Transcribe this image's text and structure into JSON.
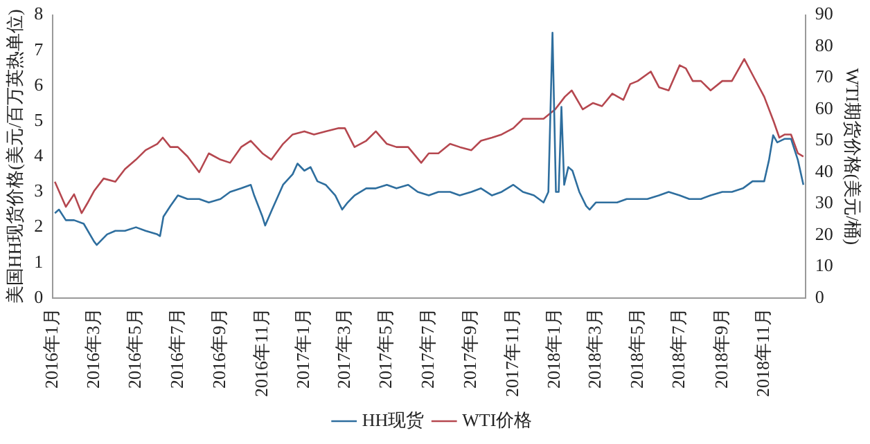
{
  "chart_data": {
    "type": "line",
    "ylabel": "美国HH现货价格(美元/百万英热单位)",
    "y2label": "WTI期货价格(美元/桶)",
    "xlim": [
      "2016-01-01",
      "2018-12-31"
    ],
    "xticks": [
      {
        "value": "2016-01",
        "label": "2016年1月"
      },
      {
        "value": "2016-03",
        "label": "2016年3月"
      },
      {
        "value": "2016-05",
        "label": "2016年5月"
      },
      {
        "value": "2016-07",
        "label": "2016年7月"
      },
      {
        "value": "2016-09",
        "label": "2016年9月"
      },
      {
        "value": "2016-11",
        "label": "2016年11月"
      },
      {
        "value": "2017-01",
        "label": "2017年1月"
      },
      {
        "value": "2017-03",
        "label": "2017年3月"
      },
      {
        "value": "2017-05",
        "label": "2017年5月"
      },
      {
        "value": "2017-07",
        "label": "2017年7月"
      },
      {
        "value": "2017-09",
        "label": "2017年9月"
      },
      {
        "value": "2017-11",
        "label": "2017年11月"
      },
      {
        "value": "2018-01",
        "label": "2018年1月"
      },
      {
        "value": "2018-03",
        "label": "2018年3月"
      },
      {
        "value": "2018-05",
        "label": "2018年5月"
      },
      {
        "value": "2018-07",
        "label": "2018年7月"
      },
      {
        "value": "2018-09",
        "label": "2018年9月"
      },
      {
        "value": "2018-11",
        "label": "2018年11月"
      }
    ],
    "ylim": [
      0,
      8
    ],
    "yticks": [
      0,
      1,
      2,
      3,
      4,
      5,
      6,
      7,
      8
    ],
    "y2lim": [
      0,
      90
    ],
    "y2ticks": [
      0,
      10,
      20,
      30,
      40,
      50,
      60,
      70,
      80,
      90
    ],
    "grid": false,
    "legend": "bottom",
    "marker": "none",
    "line_style": "solid",
    "series": [
      {
        "name": "HH现货",
        "color": "#2e6e9e",
        "x": [
          "2016-01-04",
          "2016-01-10",
          "2016-01-20",
          "2016-02-01",
          "2016-02-15",
          "2016-03-01",
          "2016-03-05",
          "2016-03-20",
          "2016-04-01",
          "2016-04-15",
          "2016-05-01",
          "2016-05-15",
          "2016-06-01",
          "2016-06-05",
          "2016-06-10",
          "2016-06-20",
          "2016-07-01",
          "2016-07-15",
          "2016-08-01",
          "2016-08-15",
          "2016-09-01",
          "2016-09-15",
          "2016-10-01",
          "2016-10-15",
          "2016-10-20",
          "2016-11-01",
          "2016-11-05",
          "2016-11-15",
          "2016-12-01",
          "2016-12-15",
          "2016-12-22",
          "2017-01-01",
          "2017-01-10",
          "2017-01-20",
          "2017-02-01",
          "2017-02-15",
          "2017-02-25",
          "2017-03-05",
          "2017-03-15",
          "2017-04-01",
          "2017-04-15",
          "2017-05-01",
          "2017-05-15",
          "2017-06-01",
          "2017-06-15",
          "2017-07-01",
          "2017-07-15",
          "2017-08-01",
          "2017-08-15",
          "2017-09-01",
          "2017-09-15",
          "2017-10-01",
          "2017-10-15",
          "2017-11-01",
          "2017-11-15",
          "2017-12-01",
          "2017-12-15",
          "2017-12-22",
          "2017-12-28",
          "2018-01-02",
          "2018-01-06",
          "2018-01-10",
          "2018-01-14",
          "2018-01-20",
          "2018-01-26",
          "2018-02-05",
          "2018-02-15",
          "2018-02-20",
          "2018-03-01",
          "2018-03-15",
          "2018-04-01",
          "2018-04-15",
          "2018-05-01",
          "2018-05-15",
          "2018-06-01",
          "2018-06-15",
          "2018-07-01",
          "2018-07-15",
          "2018-08-01",
          "2018-08-15",
          "2018-09-01",
          "2018-09-15",
          "2018-10-01",
          "2018-10-15",
          "2018-11-01",
          "2018-11-08",
          "2018-11-14",
          "2018-11-20",
          "2018-12-01",
          "2018-12-10",
          "2018-12-20",
          "2018-12-28"
        ],
        "values": [
          2.4,
          2.5,
          2.2,
          2.2,
          2.1,
          1.6,
          1.5,
          1.8,
          1.9,
          1.9,
          2.0,
          1.9,
          1.8,
          1.75,
          2.3,
          2.6,
          2.9,
          2.8,
          2.8,
          2.7,
          2.8,
          3.0,
          3.1,
          3.2,
          2.9,
          2.3,
          2.05,
          2.5,
          3.2,
          3.5,
          3.8,
          3.6,
          3.7,
          3.3,
          3.2,
          2.9,
          2.5,
          2.7,
          2.9,
          3.1,
          3.1,
          3.2,
          3.1,
          3.2,
          3.0,
          2.9,
          3.0,
          3.0,
          2.9,
          3.0,
          3.1,
          2.9,
          3.0,
          3.2,
          3.0,
          2.9,
          2.7,
          3.0,
          7.5,
          3.0,
          3.0,
          5.4,
          3.2,
          3.7,
          3.6,
          3.0,
          2.6,
          2.5,
          2.7,
          2.7,
          2.7,
          2.8,
          2.8,
          2.8,
          2.9,
          3.0,
          2.9,
          2.8,
          2.8,
          2.9,
          3.0,
          3.0,
          3.1,
          3.3,
          3.3,
          3.9,
          4.6,
          4.4,
          4.5,
          4.5,
          3.9,
          3.2
        ]
      },
      {
        "name": "WTI价格",
        "color": "#b5474f",
        "axis": "y2",
        "x": [
          "2016-01-04",
          "2016-01-20",
          "2016-02-01",
          "2016-02-12",
          "2016-02-20",
          "2016-03-01",
          "2016-03-15",
          "2016-04-01",
          "2016-04-15",
          "2016-05-01",
          "2016-05-15",
          "2016-06-01",
          "2016-06-09",
          "2016-06-20",
          "2016-07-01",
          "2016-07-15",
          "2016-08-01",
          "2016-08-15",
          "2016-09-01",
          "2016-09-15",
          "2016-10-01",
          "2016-10-15",
          "2016-11-01",
          "2016-11-14",
          "2016-12-01",
          "2016-12-15",
          "2017-01-01",
          "2017-01-15",
          "2017-02-01",
          "2017-02-20",
          "2017-03-01",
          "2017-03-15",
          "2017-04-01",
          "2017-04-15",
          "2017-05-01",
          "2017-05-15",
          "2017-06-01",
          "2017-06-20",
          "2017-07-01",
          "2017-07-15",
          "2017-08-01",
          "2017-08-15",
          "2017-09-01",
          "2017-09-15",
          "2017-10-01",
          "2017-10-15",
          "2017-11-01",
          "2017-11-15",
          "2017-12-01",
          "2017-12-15",
          "2018-01-01",
          "2018-01-15",
          "2018-01-25",
          "2018-02-10",
          "2018-02-25",
          "2018-03-10",
          "2018-03-25",
          "2018-04-10",
          "2018-04-20",
          "2018-05-01",
          "2018-05-20",
          "2018-06-01",
          "2018-06-15",
          "2018-07-01",
          "2018-07-10",
          "2018-07-20",
          "2018-08-01",
          "2018-08-15",
          "2018-09-01",
          "2018-09-15",
          "2018-10-03",
          "2018-10-15",
          "2018-11-01",
          "2018-11-15",
          "2018-11-23",
          "2018-12-01",
          "2018-12-10",
          "2018-12-20",
          "2018-12-28"
        ],
        "values": [
          37,
          29,
          33,
          27,
          30,
          34,
          38,
          37,
          41,
          44,
          47,
          49,
          51,
          48,
          48,
          45,
          40,
          46,
          44,
          43,
          48,
          50,
          46,
          44,
          49,
          52,
          53,
          52,
          53,
          54,
          54,
          48,
          50,
          53,
          49,
          48,
          48,
          43,
          46,
          46,
          49,
          48,
          47,
          50,
          51,
          52,
          54,
          57,
          57,
          57,
          60,
          64,
          66,
          60,
          62,
          61,
          65,
          63,
          68,
          69,
          72,
          67,
          66,
          74,
          73,
          69,
          69,
          66,
          69,
          69,
          76,
          71,
          64,
          56,
          51,
          52,
          52,
          46,
          45
        ]
      }
    ]
  }
}
